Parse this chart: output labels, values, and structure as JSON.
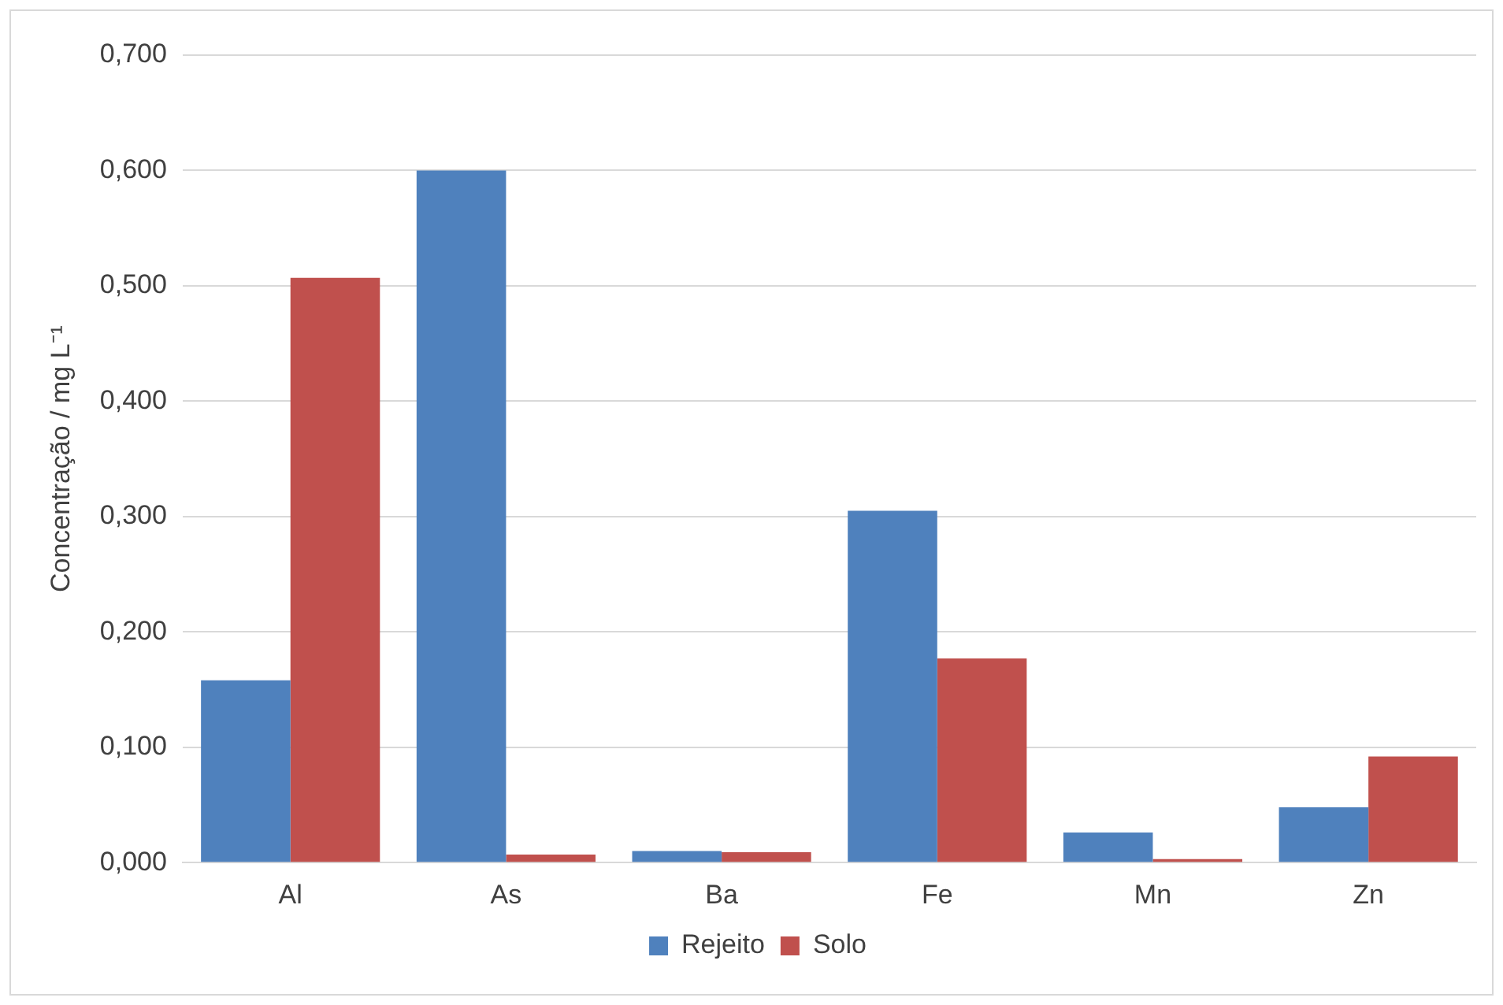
{
  "chart_data": {
    "type": "bar",
    "ylabel": "Concentração / mg L⁻¹",
    "categories": [
      "Al",
      "As",
      "Ba",
      "Fe",
      "Mn",
      "Zn"
    ],
    "series": [
      {
        "name": "Rejeito",
        "color": "#4f81bd",
        "values": [
          0.158,
          0.6,
          0.01,
          0.305,
          0.026,
          0.048
        ]
      },
      {
        "name": "Solo",
        "color": "#c0504d",
        "values": [
          0.507,
          0.007,
          0.009,
          0.177,
          0.003,
          0.092
        ]
      }
    ],
    "ylim": [
      0,
      0.7
    ],
    "yticks": [
      {
        "value": 0,
        "label": "0,000"
      },
      {
        "value": 0.1,
        "label": "0,100"
      },
      {
        "value": 0.2,
        "label": "0,200"
      },
      {
        "value": 0.3,
        "label": "0,300"
      },
      {
        "value": 0.4,
        "label": "0,400"
      },
      {
        "value": 0.5,
        "label": "0,500"
      },
      {
        "value": 0.6,
        "label": "0,600"
      },
      {
        "value": 0.7,
        "label": "0,700"
      }
    ],
    "grid": "y",
    "legend": "bottom"
  }
}
